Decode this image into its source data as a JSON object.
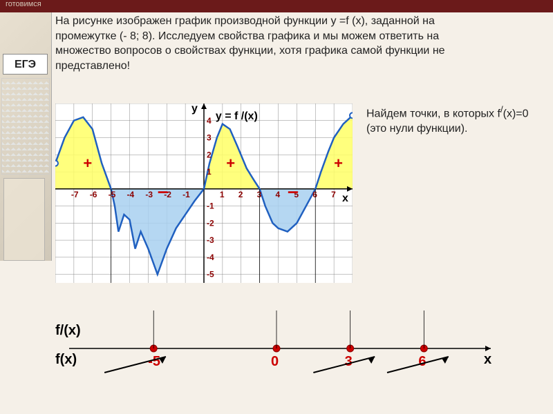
{
  "header": {
    "text": "готовимся"
  },
  "sidebar": {
    "logo": "ЕГЭ"
  },
  "main_text": "На рисунке изображен график производной функции у =f (x), заданной на промежутке (- 8; 8). Исследуем свойства графика и мы можем ответить на множество вопросов о свойствах функции, хотя графика самой функции не представлено!",
  "side_text_1": "Найдем точки, в которых f",
  "side_text_2": "(x)=0 (это нули функции).",
  "chart": {
    "type": "line",
    "xlim": [
      -8,
      8
    ],
    "ylim": [
      -5.5,
      5
    ],
    "grid_color": "#888",
    "bg": "#ffffff",
    "x_ticks": [
      -7,
      -6,
      -5,
      -4,
      -3,
      -2,
      -1,
      1,
      2,
      3,
      4,
      5,
      6,
      7
    ],
    "y_ticks": [
      -5,
      -4,
      -3,
      -2,
      -1,
      1,
      2,
      3,
      4
    ],
    "curve_color": "#2060c0",
    "curve_width": 2.5,
    "pos_fill": "#ffff66",
    "neg_fill": "#a8d0f0",
    "curve": [
      [
        -8,
        1.5
      ],
      [
        -7.5,
        3
      ],
      [
        -7,
        4
      ],
      [
        -6.5,
        4.2
      ],
      [
        -6,
        3.5
      ],
      [
        -5.5,
        1.5
      ],
      [
        -5,
        0
      ],
      [
        -4.8,
        -1
      ],
      [
        -4.6,
        -2.5
      ],
      [
        -4.3,
        -1.5
      ],
      [
        -4,
        -1.8
      ],
      [
        -3.7,
        -3.5
      ],
      [
        -3.4,
        -2.5
      ],
      [
        -3,
        -3.5
      ],
      [
        -2.5,
        -5
      ],
      [
        -2,
        -3.5
      ],
      [
        -1.5,
        -2.3
      ],
      [
        -1,
        -1.5
      ],
      [
        -0.5,
        -0.7
      ],
      [
        0,
        0
      ],
      [
        0.3,
        1.5
      ],
      [
        0.7,
        3
      ],
      [
        1,
        3.8
      ],
      [
        1.4,
        3.5
      ],
      [
        1.8,
        2.5
      ],
      [
        2.3,
        1.2
      ],
      [
        2.7,
        0.5
      ],
      [
        3,
        0
      ],
      [
        3.3,
        -1
      ],
      [
        3.7,
        -2
      ],
      [
        4,
        -2.3
      ],
      [
        4.5,
        -2.5
      ],
      [
        5,
        -2
      ],
      [
        5.5,
        -1
      ],
      [
        6,
        0
      ],
      [
        6.3,
        1
      ],
      [
        6.7,
        2.2
      ],
      [
        7,
        3
      ],
      [
        7.5,
        3.8
      ],
      [
        8,
        4.3
      ]
    ],
    "zeros": [
      -5,
      0,
      3,
      6
    ],
    "open_points": [
      [
        -8,
        1.5
      ],
      [
        8,
        4.3
      ]
    ],
    "y_axis_label": "y",
    "x_axis_label": "x",
    "func_label": "y = f /(x)",
    "plus_positions": [
      [
        -6.5,
        1.2
      ],
      [
        1.2,
        1.2
      ],
      [
        7,
        1.2
      ]
    ],
    "minus_positions": [
      [
        -2.5,
        -0.5
      ],
      [
        4.5,
        -0.5
      ]
    ]
  },
  "number_line": {
    "fprime_label": "f/(x)",
    "f_label": "f(x)",
    "x_label": "x",
    "points": [
      {
        "x": -5,
        "label": "-5",
        "color": "#c00"
      },
      {
        "x": 0,
        "label": "0",
        "color": "#c00"
      },
      {
        "x": 3,
        "label": "3",
        "color": "#c00"
      },
      {
        "x": 6,
        "label": "6",
        "color": "#c00"
      }
    ],
    "arrows": [
      -7,
      1.5,
      4.5
    ],
    "label_fontsize": 20
  }
}
